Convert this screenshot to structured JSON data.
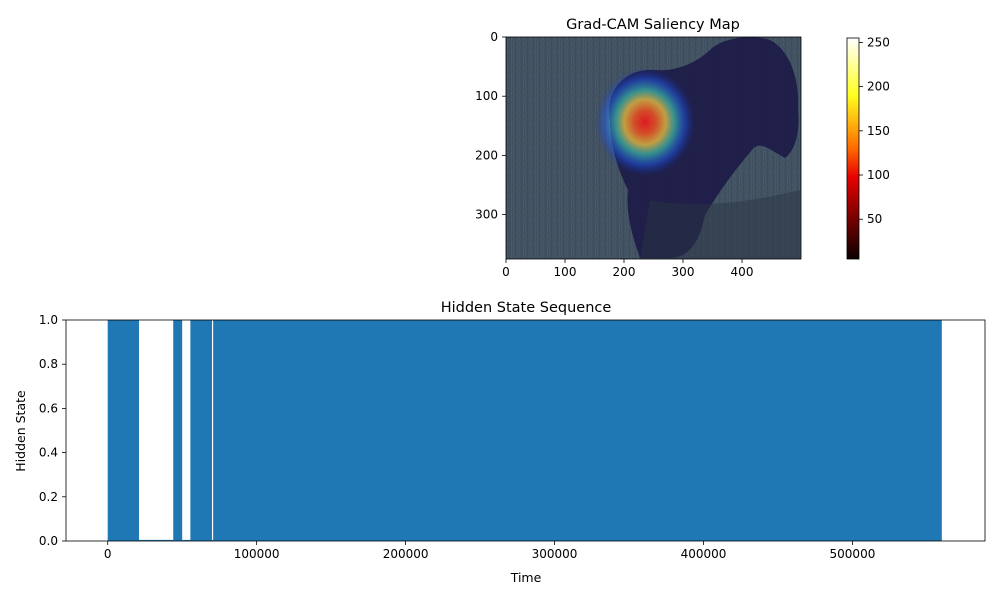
{
  "chart_data": [
    {
      "type": "heatmap",
      "title": "Grad-CAM Saliency Map",
      "image_size": [
        500,
        375
      ],
      "x_ticks": [
        0,
        100,
        200,
        300,
        400
      ],
      "y_ticks": [
        0,
        100,
        200,
        300
      ],
      "colormap": "hot",
      "colorbar": {
        "range": [
          5,
          255
        ],
        "ticks": [
          50,
          100,
          150,
          200,
          250
        ]
      },
      "saliency_peak": {
        "x": 235,
        "y": 130
      },
      "colors": {
        "grass": "#3e4d5e",
        "dog": "#1d1d4a",
        "heat_hot": "#ff2020",
        "heat_mid": "#ffe040",
        "heat_cool": "#2060ff"
      }
    },
    {
      "type": "area",
      "title": "Hidden State Sequence",
      "xlabel": "Time",
      "ylabel": "Hidden State",
      "xlim": [
        -28000,
        589000
      ],
      "ylim": [
        0.0,
        1.0
      ],
      "x_ticks": [
        0,
        100000,
        200000,
        300000,
        400000,
        500000
      ],
      "y_ticks": [
        "0.0",
        "0.2",
        "0.4",
        "0.6",
        "0.8",
        "1.0"
      ],
      "series": [
        {
          "color": "#1f77b4",
          "segments": [
            {
              "x": [
                0,
                21000
              ],
              "y": 1
            },
            {
              "x": [
                21000,
                44000
              ],
              "y": 0
            },
            {
              "x": [
                44000,
                50000
              ],
              "y": 1
            },
            {
              "x": [
                50000,
                55500
              ],
              "y": 0
            },
            {
              "x": [
                55500,
                70000
              ],
              "y": 1
            },
            {
              "x": [
                70000,
                70800
              ],
              "y": 0
            },
            {
              "x": [
                70800,
                560000
              ],
              "y": 1
            }
          ]
        }
      ]
    }
  ]
}
